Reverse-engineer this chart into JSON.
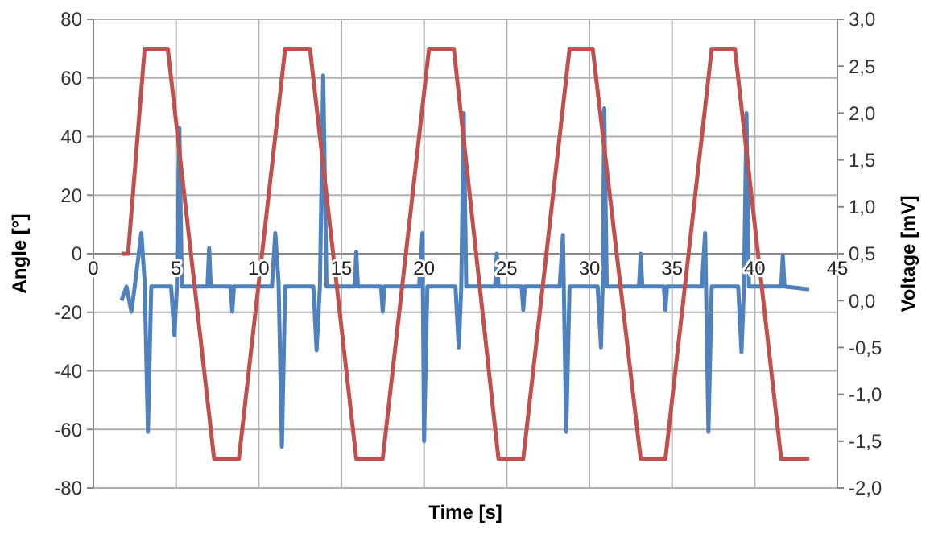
{
  "chart_data": {
    "type": "line",
    "xlabel": "Time [s]",
    "ylabel": "Angle [°]",
    "y2label": "Voltage [mV]",
    "xlim": [
      0,
      45
    ],
    "xticks": [
      0,
      5,
      10,
      15,
      20,
      25,
      30,
      35,
      40,
      45
    ],
    "ylim": [
      -80,
      80
    ],
    "yticks": [
      -80,
      -60,
      -40,
      -20,
      0,
      20,
      40,
      60,
      80
    ],
    "y2lim": [
      -2,
      3
    ],
    "y2ticks": [
      {
        "value": -2,
        "label": "-2,0"
      },
      {
        "value": -1.5,
        "label": "-1,5"
      },
      {
        "value": -1,
        "label": "-1,0"
      },
      {
        "value": -0.5,
        "label": "-0,5"
      },
      {
        "value": 0,
        "label": "0,0"
      },
      {
        "value": 0.5,
        "label": "0,5"
      },
      {
        "value": 1,
        "label": "1,0"
      },
      {
        "value": 1.5,
        "label": "1,5"
      },
      {
        "value": 2,
        "label": "2,0"
      },
      {
        "value": 2.5,
        "label": "2,5"
      },
      {
        "value": 3,
        "label": "3,0"
      }
    ],
    "grid": true,
    "series": [
      {
        "color": "#4f81bd",
        "axis": "y2",
        "x": [
          1.7,
          2.0,
          2.3,
          2.5,
          2.9,
          3.1,
          3.3,
          3.5,
          4.7,
          4.9,
          5.05,
          5.2,
          5.35,
          6.9,
          7.0,
          7.1,
          8.3,
          8.4,
          8.5,
          10.8,
          11.0,
          11.2,
          11.4,
          11.6,
          13.3,
          13.5,
          13.7,
          13.9,
          14.1,
          15.8,
          15.9,
          16.0,
          17.4,
          17.5,
          17.6,
          19.7,
          19.9,
          20.0,
          20.2,
          21.9,
          22.1,
          22.25,
          22.4,
          22.55,
          24.3,
          24.4,
          24.5,
          25.9,
          26.0,
          26.1,
          28.2,
          28.4,
          28.6,
          28.8,
          30.5,
          30.7,
          30.8,
          30.9,
          31.05,
          33.0,
          33.1,
          33.2,
          34.5,
          34.6,
          34.7,
          36.8,
          37.0,
          37.2,
          37.4,
          39.0,
          39.2,
          39.35,
          39.5,
          39.65,
          41.6,
          41.7,
          41.8,
          43.3
        ],
        "values": [
          0.0,
          0.15,
          -0.12,
          0.15,
          0.72,
          0.2,
          -1.4,
          0.15,
          0.15,
          -0.37,
          0.15,
          1.84,
          0.15,
          0.15,
          0.56,
          0.15,
          0.15,
          -0.12,
          0.15,
          0.15,
          0.72,
          0.2,
          -1.56,
          0.15,
          0.15,
          -0.53,
          0.15,
          2.4,
          0.15,
          0.15,
          0.52,
          0.15,
          0.15,
          -0.12,
          0.15,
          0.15,
          0.72,
          -1.5,
          0.15,
          0.15,
          -0.5,
          0.15,
          2.0,
          0.15,
          0.15,
          0.5,
          0.15,
          0.15,
          -0.1,
          0.15,
          0.15,
          0.7,
          -1.4,
          0.15,
          0.15,
          -0.5,
          0.15,
          2.05,
          0.15,
          0.15,
          0.5,
          0.15,
          0.15,
          -0.1,
          0.15,
          0.15,
          0.72,
          -1.4,
          0.15,
          0.15,
          -0.55,
          0.15,
          2.0,
          0.15,
          0.15,
          0.48,
          0.15,
          0.12
        ]
      },
      {
        "color": "#c0504d",
        "x": [
          1.7,
          2.1,
          3.1,
          4.5,
          7.3,
          8.8,
          11.6,
          13.1,
          15.9,
          17.5,
          20.3,
          21.8,
          24.5,
          26.0,
          28.8,
          30.2,
          33.1,
          34.6,
          37.4,
          38.8,
          41.6,
          43.3
        ],
        "values": [
          0,
          0,
          70,
          70,
          -70,
          -70,
          70,
          70,
          -70,
          -70,
          70,
          70,
          -70,
          -70,
          70,
          70,
          -70,
          -70,
          70,
          70,
          -70,
          -70
        ]
      }
    ]
  }
}
